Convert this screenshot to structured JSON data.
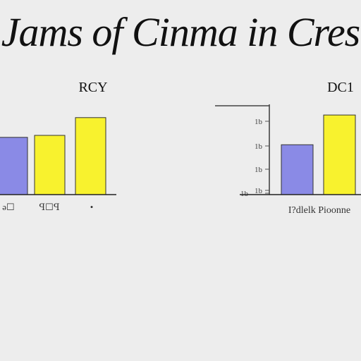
{
  "page": {
    "title": "Jams of Cinma in Cres"
  },
  "colors": {
    "background": "#ededed",
    "bar_blue": "#8a8ae6",
    "bar_yellow": "#f8f22e",
    "axis": "#222222",
    "text": "#111111"
  },
  "chart_data": [
    {
      "type": "bar",
      "title": "RCY",
      "xlabel": "",
      "ylabel": "",
      "categories": [
        "",
        "",
        ""
      ],
      "category_tick_labels": [
        "ǝ☐",
        "ꟼ☐ꟼ",
        "•"
      ],
      "values": [
        58,
        60,
        78
      ],
      "bar_colors": [
        "#8a8ae6",
        "#f8f22e",
        "#f8f22e"
      ],
      "ylim": [
        0,
        100
      ],
      "grid": false,
      "legend": "none"
    },
    {
      "type": "bar",
      "title": "DC1",
      "xlabel": "I?dlelk Pioonne",
      "ylabel": "",
      "categories": [
        "",
        ""
      ],
      "values": [
        52,
        83
      ],
      "bar_colors": [
        "#8a8ae6",
        "#f8f22e"
      ],
      "ytick_labels": [
        "1b",
        "1b",
        "1b",
        "1b",
        "1b"
      ],
      "ylim": [
        0,
        100
      ],
      "grid": false,
      "legend": "none"
    }
  ]
}
